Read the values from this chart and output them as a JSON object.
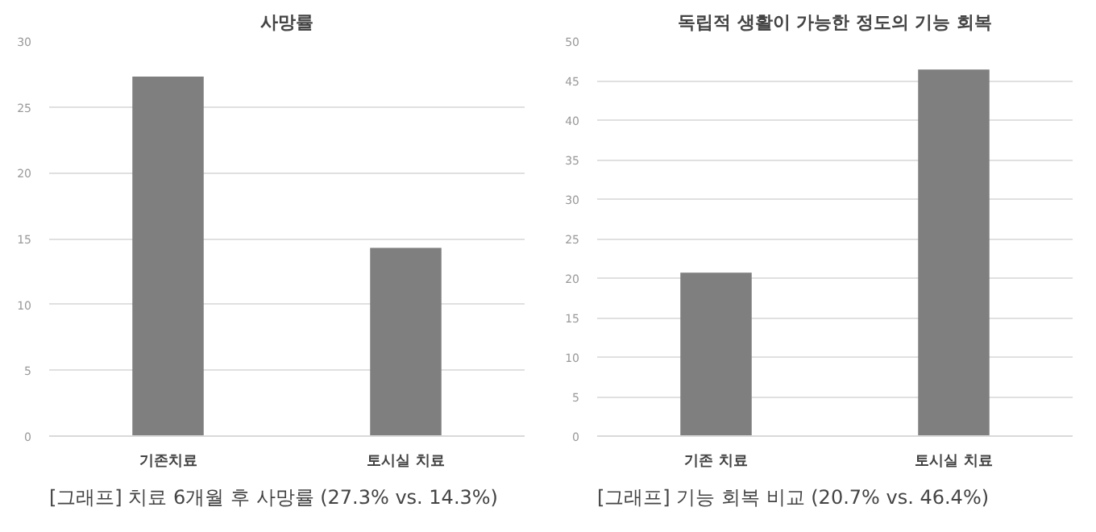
{
  "chart_data": [
    {
      "type": "bar",
      "title": "사망률",
      "categories": [
        "기존치료",
        "토시실 치료"
      ],
      "values": [
        27.3,
        14.3
      ],
      "color": "#7f7f7f",
      "ylim": [
        0,
        30
      ],
      "yticks": [
        0,
        5,
        10,
        15,
        20,
        25,
        30
      ],
      "grid": "y",
      "annotations": [
        "[그래프] 치료 6개월 후 사망률 (27.3% vs. 14.3%)"
      ]
    },
    {
      "type": "bar",
      "title": "독립적 생활이 가능한 정도의 기능 회복",
      "categories": [
        "기존 치료",
        "토시실 치료"
      ],
      "values": [
        20.7,
        46.4
      ],
      "color": "#7f7f7f",
      "ylim": [
        0,
        50
      ],
      "yticks": [
        0,
        5,
        10,
        15,
        20,
        25,
        30,
        35,
        40,
        45,
        50
      ],
      "grid": "y",
      "annotations": [
        "[그래프] 기능 회복 비교 (20.7% vs. 46.4%)"
      ]
    }
  ]
}
